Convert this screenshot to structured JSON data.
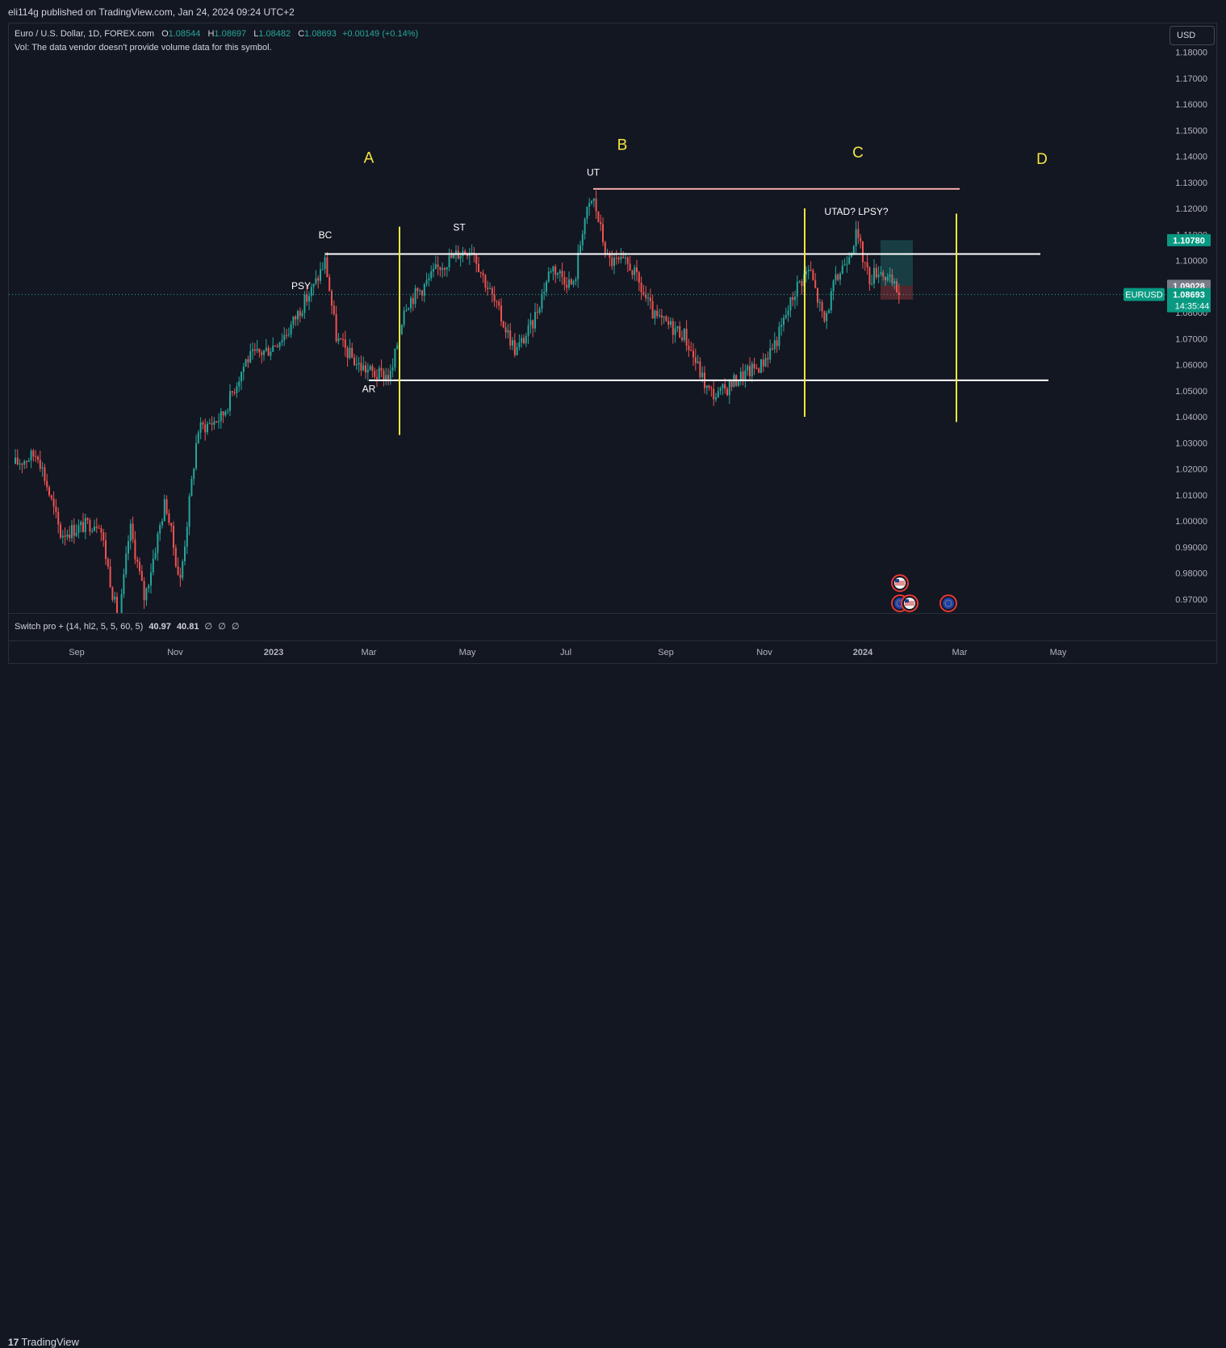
{
  "header": {
    "published": "eli114g published on TradingView.com, Jan 24, 2024 09:24 UTC+2"
  },
  "legend": {
    "symbol": "Euro / U.S. Dollar, 1D, FOREX.com",
    "o_label": "O",
    "o": "1.08544",
    "h_label": "H",
    "h": "1.08697",
    "l_label": "L",
    "l": "1.08482",
    "c_label": "C",
    "c": "1.08693",
    "change": "+0.00149 (+0.14%)",
    "vol": "Vol: The data vendor doesn't provide volume data for this symbol."
  },
  "currency_button": "USD",
  "indicator": {
    "name": "Switch pro + (14, hl2, 5, 5, 60, 5)",
    "v1": "40.97",
    "v2": "40.81",
    "v3": "∅",
    "v4": "∅",
    "v5": "∅"
  },
  "footer": {
    "brand": "TradingView"
  },
  "price_tags": {
    "tp": "1.10780",
    "entry": "1.09028",
    "symbol": "EURUSD",
    "last": "1.08693",
    "countdown": "14:35:44",
    "sl": "1.08498"
  },
  "colors": {
    "up": "#26a69a",
    "down": "#ef5350",
    "annotation_line": "#f5e642",
    "level_line": "#ffffff",
    "ut_line": "#f4a9a9"
  },
  "chart_data": {
    "type": "candlestick",
    "title": "Euro / U.S. Dollar, 1D, FOREX.com",
    "ylim": [
      0.962,
      1.186
    ],
    "yticks": [
      "1.18000",
      "1.17000",
      "1.16000",
      "1.15000",
      "1.14000",
      "1.13000",
      "1.12000",
      "1.11000",
      "1.10000",
      "1.09000",
      "1.08000",
      "1.07000",
      "1.06000",
      "1.05000",
      "1.04000",
      "1.03000",
      "1.02000",
      "1.01000",
      "1.00000",
      "0.99000",
      "0.98000",
      "0.97000"
    ],
    "xticks": [
      {
        "label": "Sep",
        "date": "2022-09-01"
      },
      {
        "label": "Nov",
        "date": "2022-11-01"
      },
      {
        "label": "2023",
        "date": "2023-01-01"
      },
      {
        "label": "Mar",
        "date": "2023-03-01"
      },
      {
        "label": "May",
        "date": "2023-05-01"
      },
      {
        "label": "Jul",
        "date": "2023-07-01"
      },
      {
        "label": "Sep",
        "date": "2023-09-01"
      },
      {
        "label": "Nov",
        "date": "2023-11-01"
      },
      {
        "label": "2024",
        "date": "2024-01-01"
      },
      {
        "label": "Mar",
        "date": "2024-03-01"
      },
      {
        "label": "May",
        "date": "2024-05-01"
      }
    ],
    "price_path": [
      [
        "2022-07-25",
        1.022
      ],
      [
        "2022-08-08",
        1.026
      ],
      [
        "2022-08-22",
        0.995
      ],
      [
        "2022-09-05",
        0.998
      ],
      [
        "2022-09-15",
        1.0
      ],
      [
        "2022-09-27",
        0.96
      ],
      [
        "2022-10-04",
        0.998
      ],
      [
        "2022-10-13",
        0.97
      ],
      [
        "2022-10-26",
        1.008
      ],
      [
        "2022-11-04",
        0.976
      ],
      [
        "2022-11-15",
        1.035
      ],
      [
        "2022-11-30",
        1.04
      ],
      [
        "2022-12-15",
        1.062
      ],
      [
        "2022-12-29",
        1.066
      ],
      [
        "2023-01-10",
        1.073
      ],
      [
        "2023-01-18",
        1.082
      ],
      [
        "2023-01-26",
        1.09
      ],
      [
        "2023-02-02",
        1.1
      ],
      [
        "2023-02-09",
        1.07
      ],
      [
        "2023-02-22",
        1.06
      ],
      [
        "2023-03-06",
        1.056
      ],
      [
        "2023-03-15",
        1.056
      ],
      [
        "2023-03-23",
        1.083
      ],
      [
        "2023-04-04",
        1.09
      ],
      [
        "2023-04-14",
        1.098
      ],
      [
        "2023-04-26",
        1.103
      ],
      [
        "2023-05-04",
        1.105
      ],
      [
        "2023-05-10",
        1.095
      ],
      [
        "2023-05-31",
        1.065
      ],
      [
        "2023-06-10",
        1.075
      ],
      [
        "2023-06-22",
        1.098
      ],
      [
        "2023-07-06",
        1.09
      ],
      [
        "2023-07-12",
        1.115
      ],
      [
        "2023-07-18",
        1.124
      ],
      [
        "2023-07-27",
        1.1
      ],
      [
        "2023-08-10",
        1.098
      ],
      [
        "2023-08-25",
        1.078
      ],
      [
        "2023-09-12",
        1.072
      ],
      [
        "2023-09-27",
        1.05
      ],
      [
        "2023-10-03",
        1.048
      ],
      [
        "2023-10-16",
        1.055
      ],
      [
        "2023-10-30",
        1.06
      ],
      [
        "2023-11-09",
        1.07
      ],
      [
        "2023-11-21",
        1.09
      ],
      [
        "2023-11-29",
        1.097
      ],
      [
        "2023-12-08",
        1.076
      ],
      [
        "2023-12-14",
        1.09
      ],
      [
        "2023-12-28",
        1.11
      ],
      [
        "2024-01-05",
        1.093
      ],
      [
        "2024-01-11",
        1.097
      ],
      [
        "2024-01-24",
        1.087
      ]
    ],
    "last": 1.08693,
    "levels": [
      {
        "name": "range high",
        "value": 1.1025,
        "start": "2023-02-02",
        "end": "2024-04-20"
      },
      {
        "name": "range low",
        "value": 1.054,
        "start": "2023-03-01",
        "end": "2024-04-25"
      },
      {
        "name": "UT high",
        "value": 1.1275,
        "start": "2023-07-18",
        "end": "2024-03-01"
      }
    ],
    "phase_dividers": [
      {
        "date": "2023-03-20",
        "from": 1.113,
        "to": 1.033
      },
      {
        "date": "2023-11-26",
        "from": 1.12,
        "to": 1.04
      },
      {
        "date": "2024-02-28",
        "from": 1.118,
        "to": 1.038
      }
    ],
    "annotations": [
      {
        "text": "PSY",
        "date": "2023-01-18",
        "price": 1.089
      },
      {
        "text": "BC",
        "date": "2023-02-02",
        "price": 1.1085
      },
      {
        "text": "AR",
        "date": "2023-03-01",
        "price": 1.0495
      },
      {
        "text": "ST",
        "date": "2023-04-26",
        "price": 1.1115
      },
      {
        "text": "UT",
        "date": "2023-07-18",
        "price": 1.1325
      },
      {
        "text": "UTAD? LPSY?",
        "date": "2023-12-28",
        "price": 1.1175
      }
    ],
    "zones": [
      {
        "text": "A",
        "date": "2023-03-01",
        "price": 1.1375
      },
      {
        "text": "B",
        "date": "2023-08-05",
        "price": 1.1425
      },
      {
        "text": "C",
        "date": "2023-12-29",
        "price": 1.1395
      },
      {
        "text": "D",
        "date": "2024-04-21",
        "price": 1.137
      }
    ],
    "position": {
      "start": "2024-01-12",
      "end": "2024-02-01",
      "entry": 1.09028,
      "target": 1.1078,
      "stop": 1.08498
    },
    "events": [
      {
        "flag": "us",
        "date": "2024-01-24",
        "row": 1
      },
      {
        "flag": "eu",
        "date": "2024-01-24",
        "row": 2
      },
      {
        "flag": "us",
        "date": "2024-01-30",
        "row": 2
      },
      {
        "flag": "eu",
        "date": "2024-02-23",
        "row": 2
      }
    ]
  }
}
